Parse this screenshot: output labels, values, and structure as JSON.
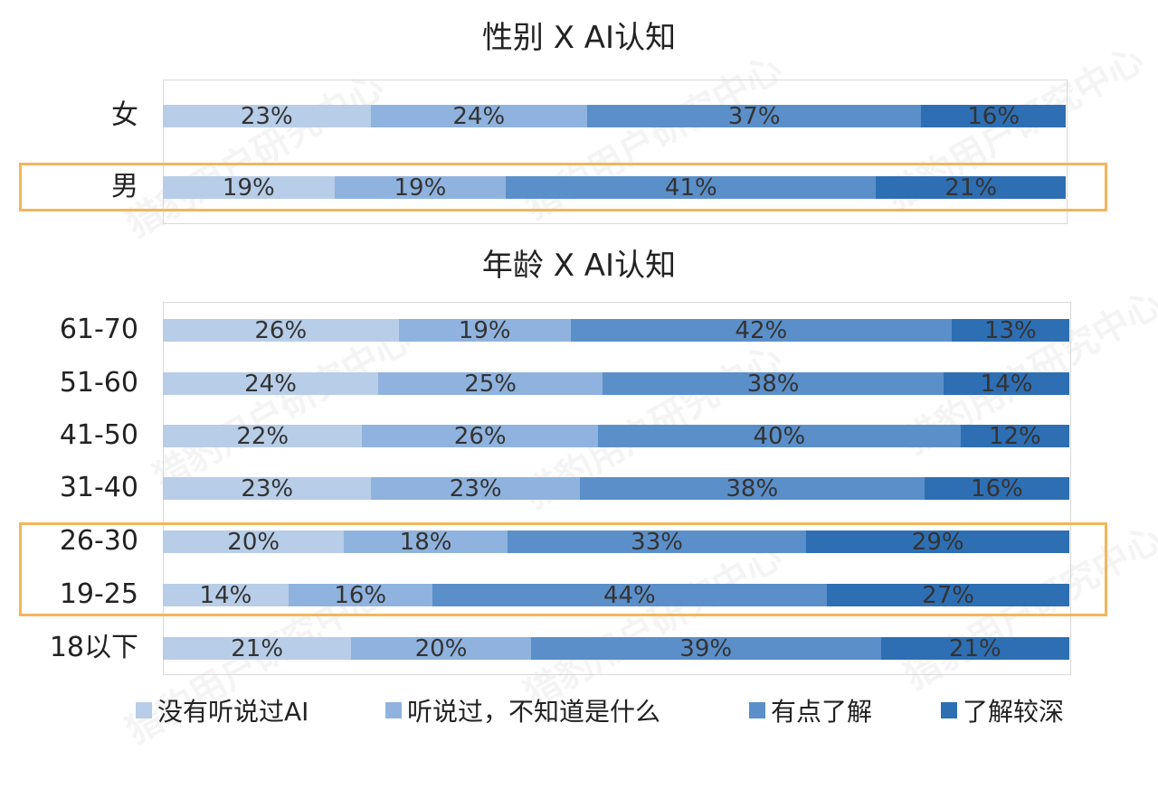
{
  "watermark": "猎豹用户研究中心",
  "legend": [
    {
      "label": "没有听说过AI",
      "color": "#b7cde8"
    },
    {
      "label": "听说过，不知道是什么",
      "color": "#8fb3de"
    },
    {
      "label": "有点了解",
      "color": "#5b8fc9"
    },
    {
      "label": "了解较深",
      "color": "#2e6fb4"
    }
  ],
  "chart_data": [
    {
      "type": "bar",
      "orientation": "horizontal",
      "stacked": true,
      "title": "性别 X AI认知",
      "categories": [
        "女",
        "男"
      ],
      "series": [
        {
          "name": "没有听说过AI",
          "values": [
            23,
            19
          ],
          "labels": [
            "23%",
            "19%"
          ]
        },
        {
          "name": "听说过，不知道是什么",
          "values": [
            24,
            19
          ],
          "labels": [
            "24%",
            "19%"
          ]
        },
        {
          "name": "有点了解",
          "values": [
            37,
            41
          ],
          "labels": [
            "37%",
            "41%"
          ]
        },
        {
          "name": "了解较深",
          "values": [
            16,
            21
          ],
          "labels": [
            "16%",
            "21%"
          ]
        }
      ],
      "highlighted": [
        "男"
      ]
    },
    {
      "type": "bar",
      "orientation": "horizontal",
      "stacked": true,
      "title": "年龄 X AI认知",
      "categories": [
        "61-70",
        "51-60",
        "41-50",
        "31-40",
        "26-30",
        "19-25",
        "18以下"
      ],
      "series": [
        {
          "name": "没有听说过AI",
          "values": [
            26,
            24,
            22,
            23,
            20,
            14,
            21
          ],
          "labels": [
            "26%",
            "24%",
            "22%",
            "23%",
            "20%",
            "14%",
            "21%"
          ]
        },
        {
          "name": "听说过，不知道是什么",
          "values": [
            19,
            25,
            26,
            23,
            18,
            16,
            20
          ],
          "labels": [
            "19%",
            "25%",
            "26%",
            "23%",
            "18%",
            "16%",
            "20%"
          ]
        },
        {
          "name": "有点了解",
          "values": [
            42,
            38,
            40,
            38,
            33,
            44,
            39
          ],
          "labels": [
            "42%",
            "38%",
            "40%",
            "38%",
            "33%",
            "44%",
            "39%"
          ]
        },
        {
          "name": "了解较深",
          "values": [
            13,
            14,
            12,
            16,
            29,
            27,
            21
          ],
          "labels": [
            "13%",
            "14%",
            "12%",
            "16%",
            "29%",
            "27%",
            "21%"
          ]
        }
      ],
      "highlighted": [
        "26-30",
        "19-25"
      ]
    }
  ]
}
